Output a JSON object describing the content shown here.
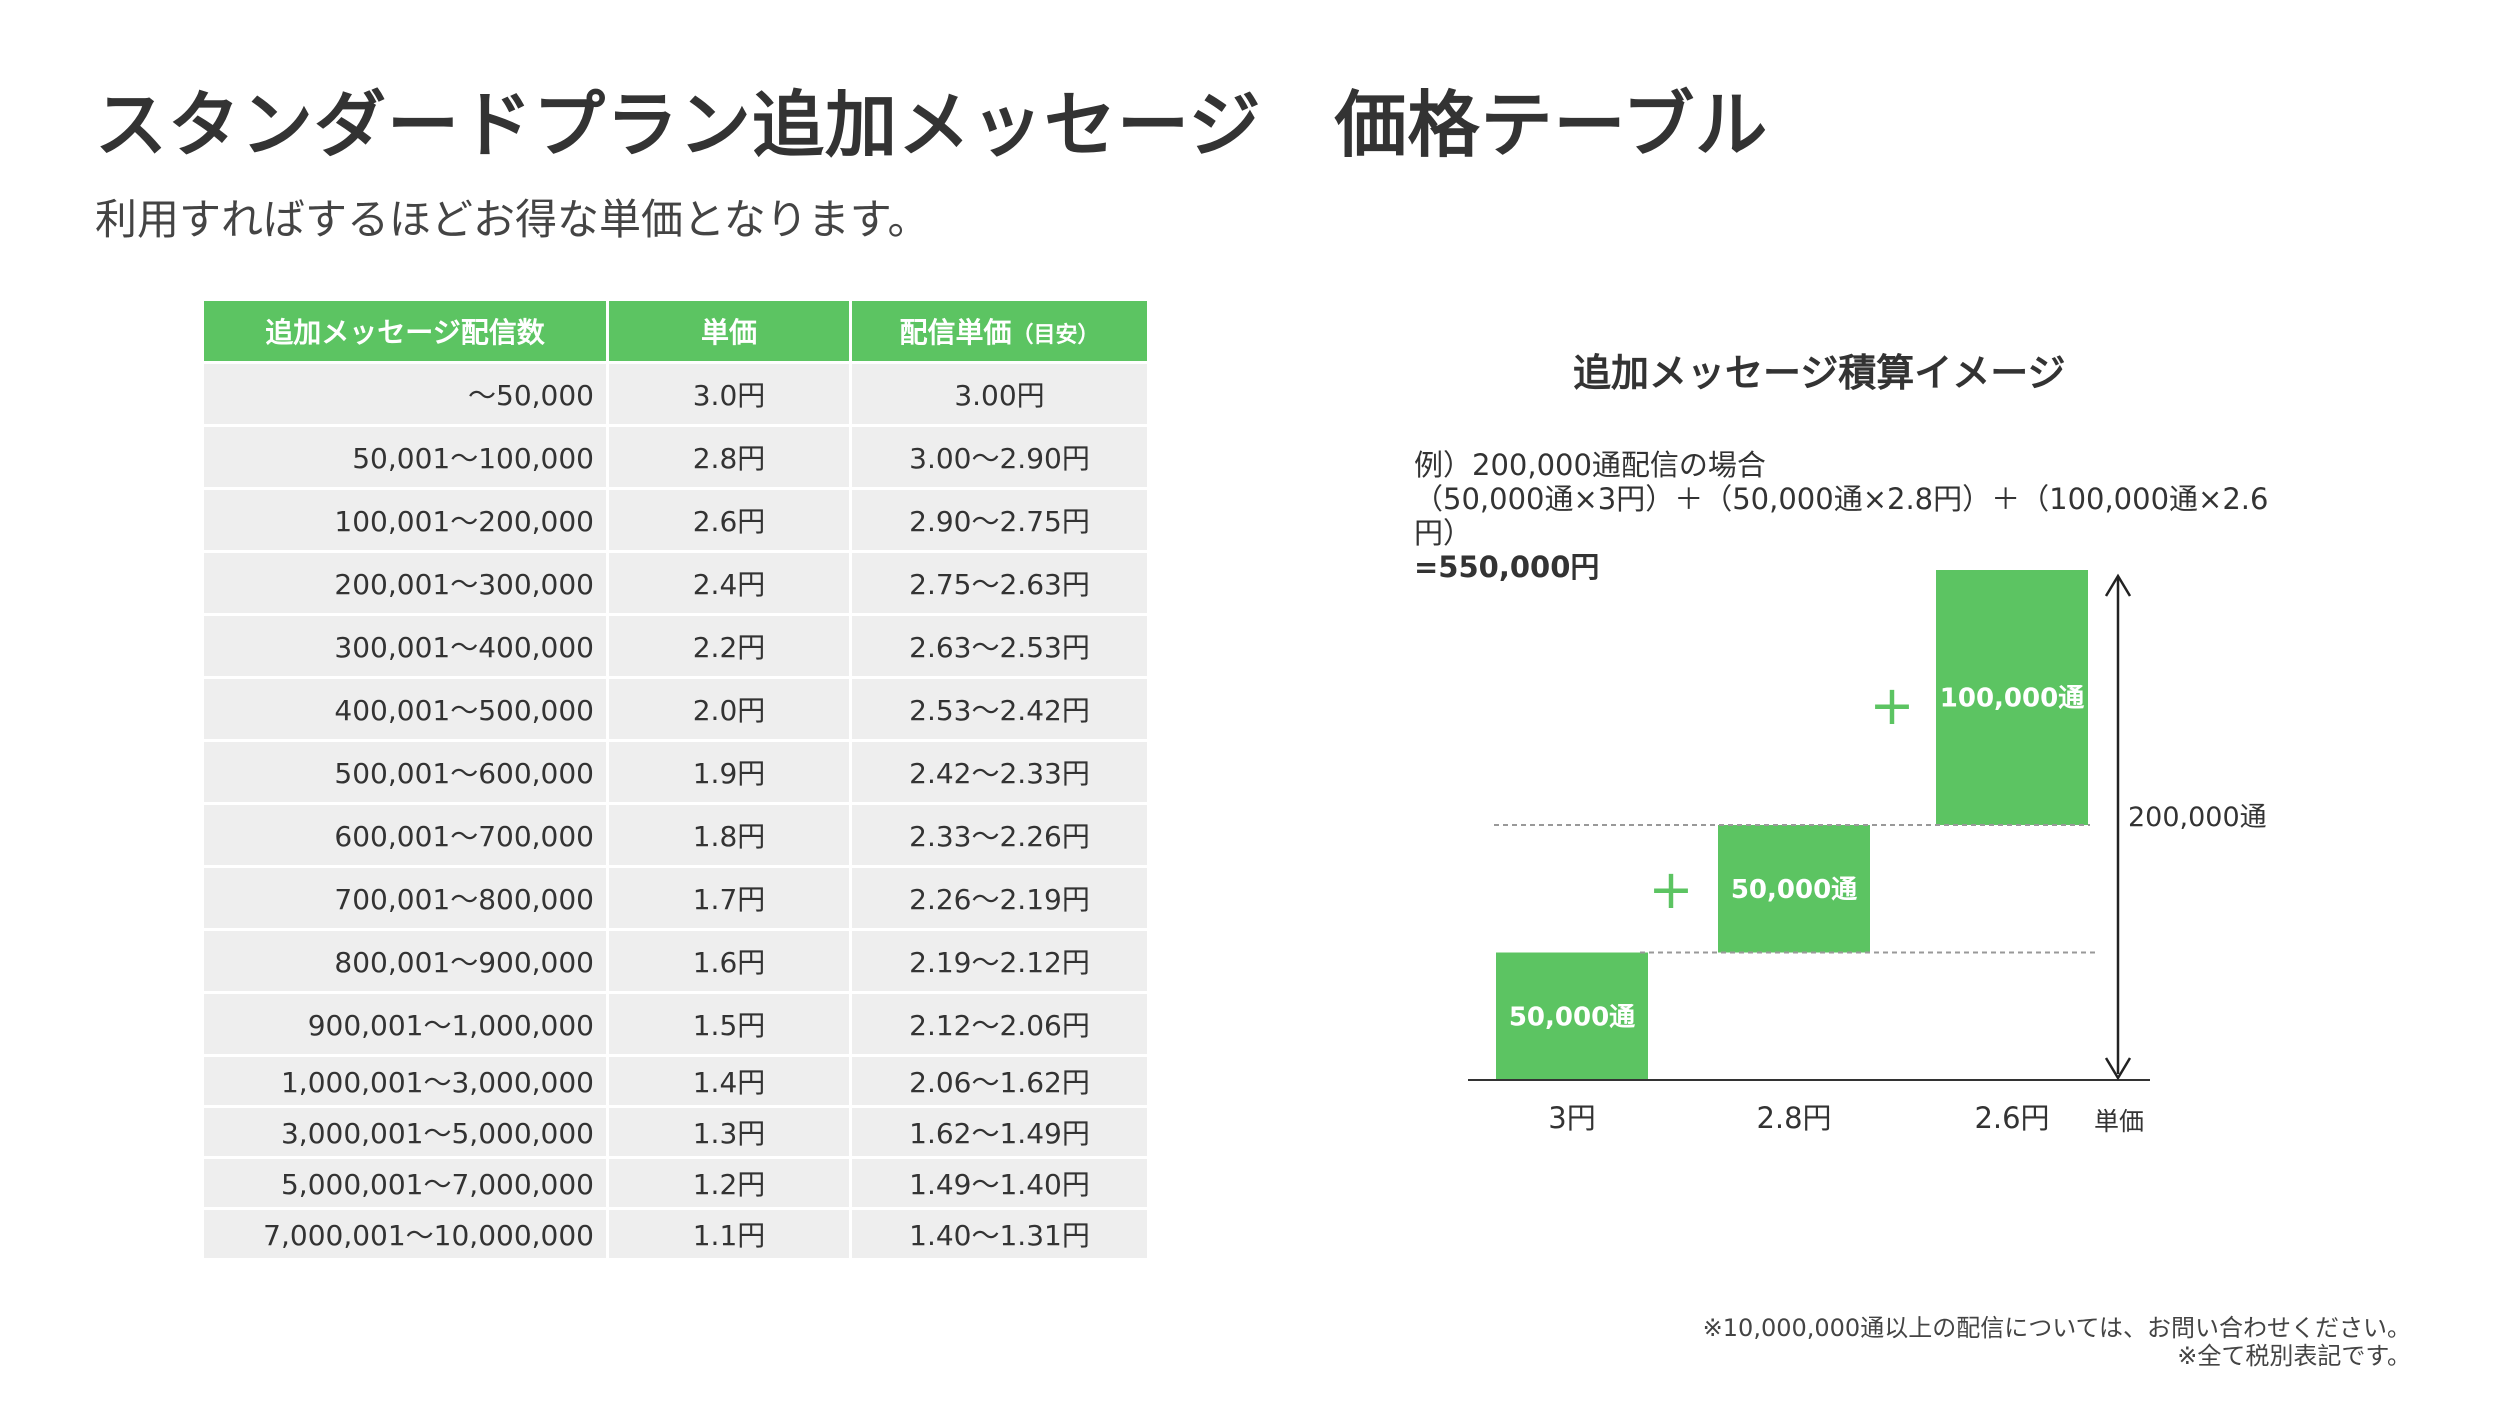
{
  "title": "スタンダードプラン追加メッセージ　価格テーブル",
  "subtitle": "利用すればするほどお得な単価となります。",
  "table": {
    "headers": {
      "count": "追加メッセージ配信数",
      "unit_price": "単価",
      "delivery_unit_price": "配信単価",
      "delivery_unit_price_note": "（目安）"
    },
    "rows": [
      {
        "count": "〜50,000",
        "unit_price": "3.0円",
        "delivery_unit_price": "3.00円"
      },
      {
        "count": "50,001〜100,000",
        "unit_price": "2.8円",
        "delivery_unit_price": "3.00〜2.90円"
      },
      {
        "count": "100,001〜200,000",
        "unit_price": "2.6円",
        "delivery_unit_price": "2.90〜2.75円"
      },
      {
        "count": "200,001〜300,000",
        "unit_price": "2.4円",
        "delivery_unit_price": "2.75〜2.63円"
      },
      {
        "count": "300,001〜400,000",
        "unit_price": "2.2円",
        "delivery_unit_price": "2.63〜2.53円"
      },
      {
        "count": "400,001〜500,000",
        "unit_price": "2.0円",
        "delivery_unit_price": "2.53〜2.42円"
      },
      {
        "count": "500,001〜600,000",
        "unit_price": "1.9円",
        "delivery_unit_price": "2.42〜2.33円"
      },
      {
        "count": "600,001〜700,000",
        "unit_price": "1.8円",
        "delivery_unit_price": "2.33〜2.26円"
      },
      {
        "count": "700,001〜800,000",
        "unit_price": "1.7円",
        "delivery_unit_price": "2.26〜2.19円"
      },
      {
        "count": "800,001〜900,000",
        "unit_price": "1.6円",
        "delivery_unit_price": "2.19〜2.12円"
      },
      {
        "count": "900,001〜1,000,000",
        "unit_price": "1.5円",
        "delivery_unit_price": "2.12〜2.06円"
      },
      {
        "count": "1,000,001〜3,000,000",
        "unit_price": "1.4円",
        "delivery_unit_price": "2.06〜1.62円"
      },
      {
        "count": "3,000,001〜5,000,000",
        "unit_price": "1.3円",
        "delivery_unit_price": "1.62〜1.49円"
      },
      {
        "count": "5,000,001〜7,000,000",
        "unit_price": "1.2円",
        "delivery_unit_price": "1.49〜1.40円"
      },
      {
        "count": "7,000,001〜10,000,000",
        "unit_price": "1.1円",
        "delivery_unit_price": "1.40〜1.31円"
      }
    ]
  },
  "diagram": {
    "title": "追加メッセージ積算イメージ",
    "example_line1": "例）200,000通配信の場合",
    "example_line2": "（50,000通×3円）＋（50,000通×2.8円）＋（100,000通×2.6",
    "example_line3": "円）",
    "example_result": "=550,000円",
    "bars": [
      {
        "label": "50,000通",
        "count": 50000,
        "price_label": "3円"
      },
      {
        "label": "50,000通",
        "count": 50000,
        "price_label": "2.8円"
      },
      {
        "label": "100,000通",
        "count": 100000,
        "price_label": "2.6円"
      }
    ],
    "plus_sign": "+",
    "total_label": "200,000通",
    "x_axis_label": "単価",
    "bar_color": "#5cc462"
  },
  "footnotes": {
    "line1": "※10,000,000通以上の配信については、お問い合わせください。",
    "line2": "※全て税別表記です。"
  },
  "colors": {
    "accent": "#5cc462",
    "text": "#333333",
    "cell_bg": "#eeeeee"
  }
}
